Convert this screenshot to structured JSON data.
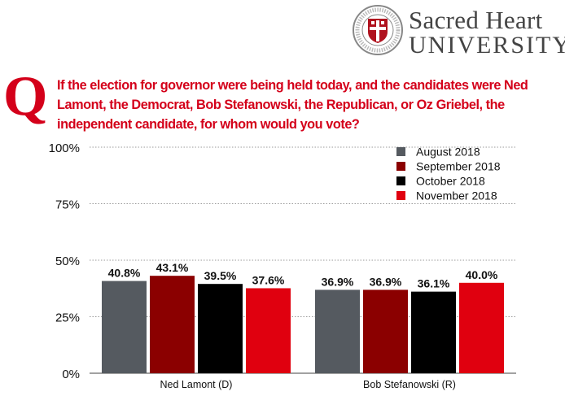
{
  "branding": {
    "name_line1": "Sacred Heart",
    "name_line2": "UNIVERSITY",
    "brand_color": "#b0121e",
    "logo_icon": "university-seal-icon"
  },
  "question": {
    "marker": "Q",
    "text": "If the election for governor were being held today, and the candidates were Ned Lamont, the Democrat, Bob Stefanowski, the Republican, or Oz Griebel, the independent candidate, for whom would you vote?",
    "color": "#d4001a"
  },
  "chart_data": {
    "type": "bar",
    "categories": [
      "Ned Lamont (D)",
      "Bob Stefanowski (R)"
    ],
    "series": [
      {
        "name": "August 2018",
        "values": [
          40.8,
          36.9
        ],
        "color": "#555a60"
      },
      {
        "name": "September 2018",
        "values": [
          43.1,
          36.9
        ],
        "color": "#8b0000"
      },
      {
        "name": "October 2018",
        "values": [
          39.5,
          36.1
        ],
        "color": "#000000"
      },
      {
        "name": "November 2018",
        "values": [
          37.6,
          40.0
        ],
        "color": "#e0000f"
      }
    ],
    "value_labels": [
      [
        "40.8%",
        "36.9%"
      ],
      [
        "43.1%",
        "36.9%"
      ],
      [
        "39.5%",
        "36.1%"
      ],
      [
        "37.6%",
        "40.0%"
      ]
    ],
    "y_ticks": [
      "0%",
      "25%",
      "50%",
      "75%",
      "100%"
    ],
    "ylim": [
      0,
      100
    ],
    "title": "",
    "xlabel": "",
    "ylabel": "",
    "grid": "dotted-horizontal",
    "legend_position": "top-right"
  }
}
